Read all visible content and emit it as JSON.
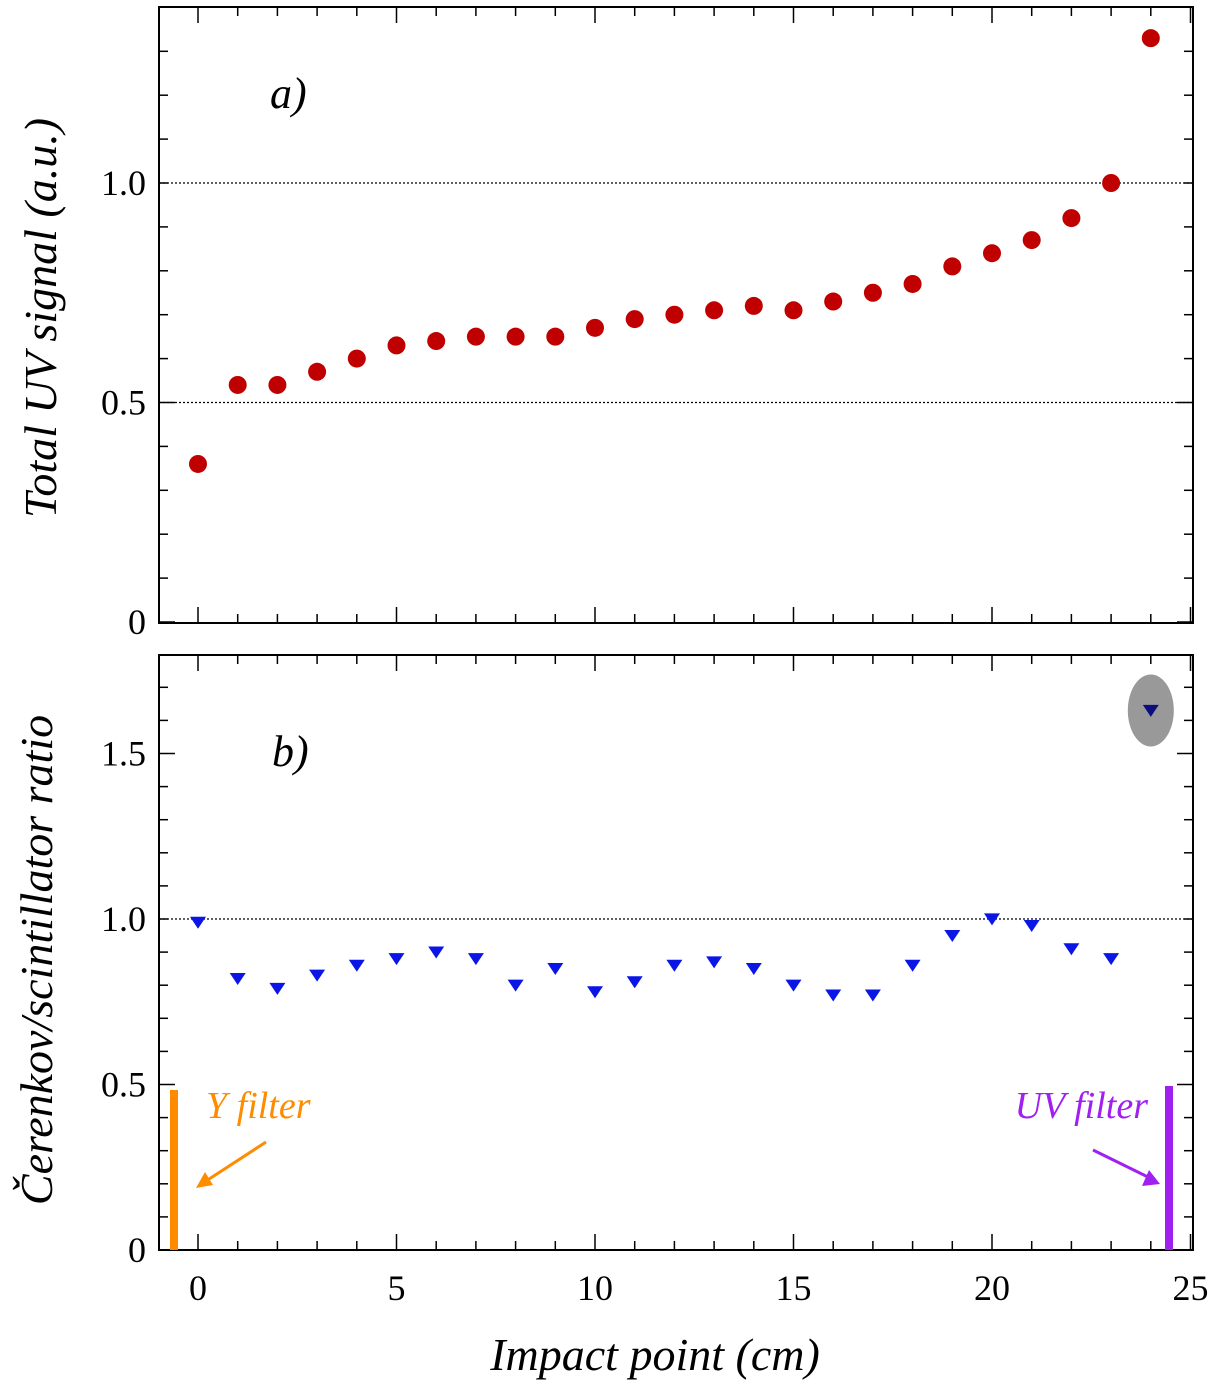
{
  "colors": {
    "series_a": "#c00000",
    "series_b": "#0b16e6",
    "highlight_point": "#0a0f80",
    "highlight_ellipse": "#999999",
    "y_filter": "#ff8c00",
    "uv_filter": "#a020f0"
  },
  "chart_data": [
    {
      "type": "scatter",
      "panel": "a)",
      "ylabel": "Total UV signal (a.u.)",
      "xlim": [
        -1,
        25
      ],
      "ylim": [
        0,
        1.35
      ],
      "yticks": [
        0,
        0.5,
        1.0
      ],
      "ytick_labels": [
        "0",
        "0.5",
        "1.0"
      ],
      "reference_lines": [
        0.5,
        1.0
      ],
      "marker": "circle",
      "x": [
        0,
        1,
        2,
        3,
        4,
        5,
        6,
        7,
        8,
        9,
        10,
        11,
        12,
        13,
        14,
        15,
        16,
        17,
        18,
        19,
        20,
        21,
        22,
        23,
        24
      ],
      "y": [
        0.36,
        0.54,
        0.54,
        0.57,
        0.6,
        0.63,
        0.64,
        0.65,
        0.65,
        0.65,
        0.67,
        0.69,
        0.7,
        0.71,
        0.72,
        0.71,
        0.73,
        0.75,
        0.77,
        0.81,
        0.84,
        0.87,
        0.92,
        1.0,
        1.33
      ]
    },
    {
      "type": "scatter",
      "panel": "b)",
      "xlabel": "Impact point (cm)",
      "ylabel": "Čerenkov/scintillator ratio",
      "xlim": [
        -1,
        25
      ],
      "ylim": [
        0,
        1.8
      ],
      "xticks": [
        0,
        5,
        10,
        15,
        20,
        25
      ],
      "xtick_labels": [
        "0",
        "5",
        "10",
        "15",
        "20",
        "25"
      ],
      "yticks": [
        0,
        0.5,
        1.0,
        1.5
      ],
      "ytick_labels": [
        "0",
        "0.5",
        "1.0",
        "1.5"
      ],
      "reference_lines": [
        1.0
      ],
      "marker": "triangle-down",
      "x": [
        0,
        1,
        2,
        3,
        4,
        5,
        6,
        7,
        8,
        9,
        10,
        11,
        12,
        13,
        14,
        15,
        16,
        17,
        18,
        19,
        20,
        21,
        22,
        23,
        24
      ],
      "y": [
        0.99,
        0.82,
        0.79,
        0.83,
        0.86,
        0.88,
        0.9,
        0.88,
        0.8,
        0.85,
        0.78,
        0.81,
        0.86,
        0.87,
        0.85,
        0.8,
        0.77,
        0.77,
        0.86,
        0.95,
        1.0,
        0.98,
        0.91,
        0.88,
        1.63
      ],
      "highlighted_x": 24,
      "annotations": [
        {
          "text": "Y filter",
          "color": "#ff8c00",
          "bar_x": -0.55,
          "bar_y": [
            0,
            0.48
          ]
        },
        {
          "text": "UV filter",
          "color": "#a020f0",
          "bar_x": 24.45,
          "bar_y": [
            0,
            0.49
          ]
        }
      ]
    }
  ]
}
